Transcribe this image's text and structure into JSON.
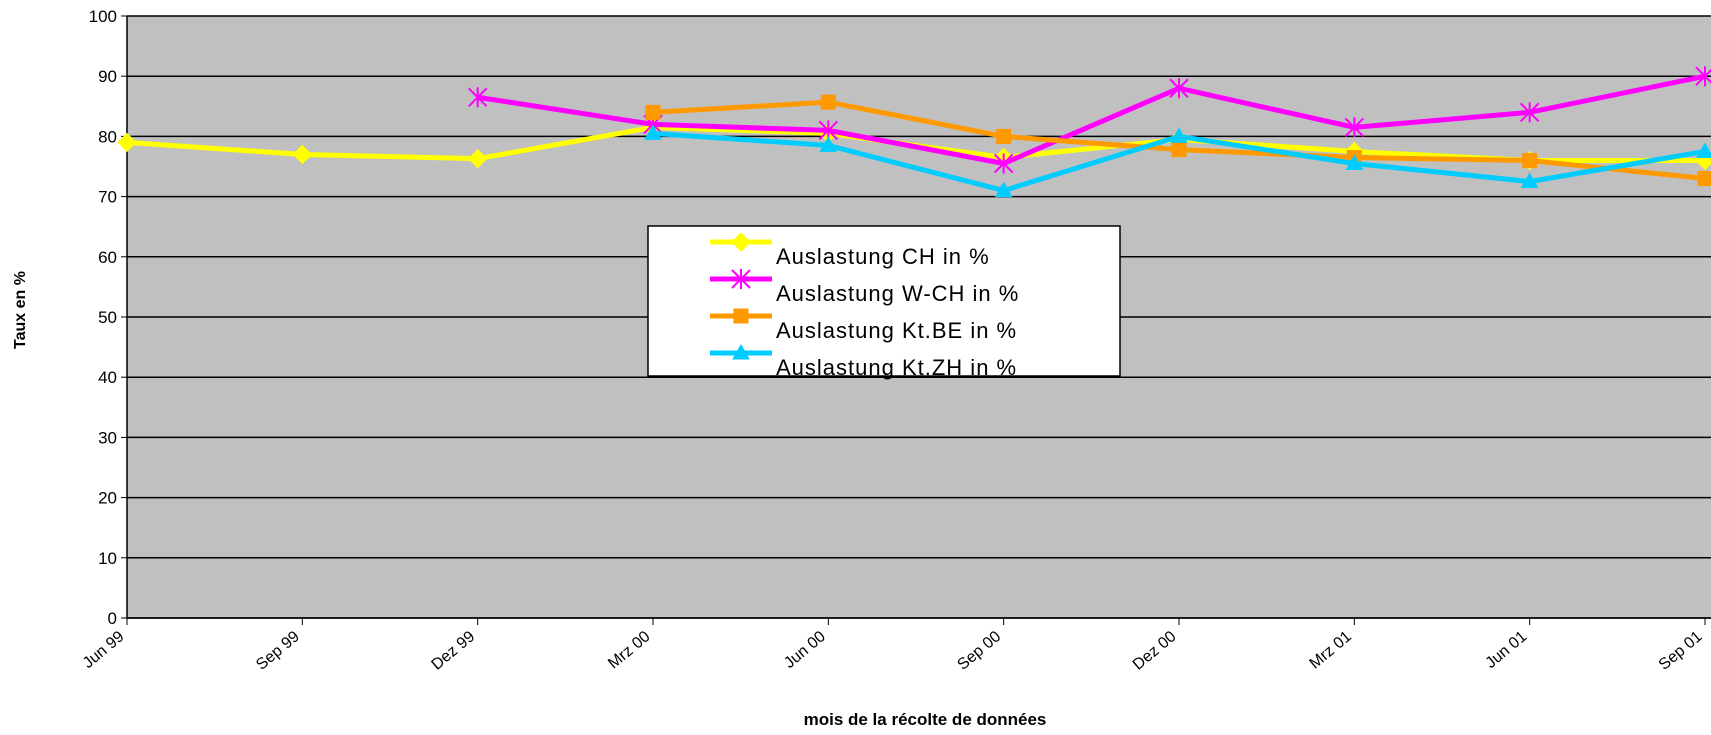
{
  "chart_data": {
    "type": "line",
    "x_label": "mois de la récolte de données",
    "y_label": "Taux en %",
    "categories": [
      "Jun 99",
      "Sep 99",
      "Dez 99",
      "Mrz 00",
      "Jun 00",
      "Sep 00",
      "Dez 00",
      "Mrz 01",
      "Jun 01",
      "Sep 01"
    ],
    "series": [
      {
        "name": "Auslastung CH in %",
        "color": "#ffff00",
        "marker": "diamond",
        "values": [
          79,
          77,
          76.3,
          81.5,
          80.5,
          76.5,
          79.5,
          77.5,
          76,
          76
        ]
      },
      {
        "name": "Auslastung W-CH in %",
        "color": "#ff00ff",
        "marker": "star",
        "values": [
          null,
          null,
          86.5,
          82,
          81,
          75.5,
          88,
          81.5,
          84,
          90
        ]
      },
      {
        "name": "Auslastung Kt.BE in %",
        "color": "#ff9900",
        "marker": "square",
        "values": [
          null,
          null,
          null,
          84,
          85.7,
          80,
          77.8,
          76.5,
          76,
          73
        ]
      },
      {
        "name": "Auslastung Kt.ZH in %",
        "color": "#00ccff",
        "marker": "triangle",
        "values": [
          null,
          null,
          null,
          80.5,
          78.5,
          71,
          80,
          75.5,
          72.5,
          77.5
        ]
      }
    ],
    "ylim": [
      0,
      100
    ],
    "yticks": [
      0,
      10,
      20,
      30,
      40,
      50,
      60,
      70,
      80,
      90,
      100
    ],
    "grid": true,
    "legend": "center"
  }
}
